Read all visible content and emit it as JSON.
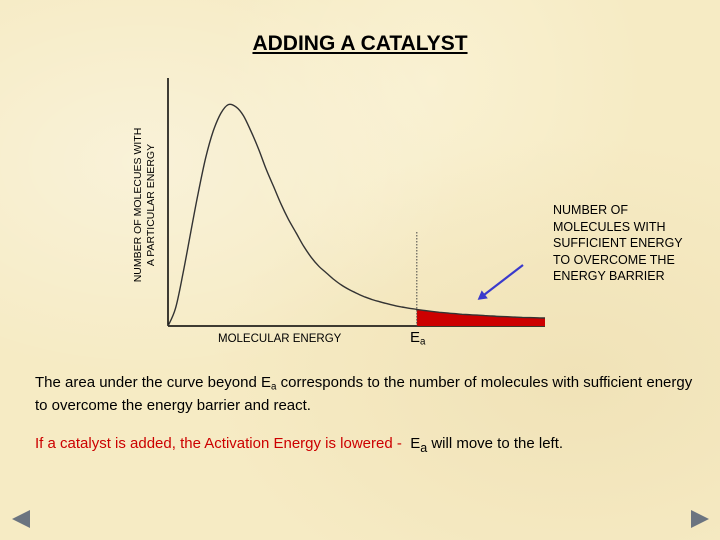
{
  "title": "ADDING A CATALYST",
  "chart_data": {
    "type": "area",
    "title": "ADDING A CATALYST",
    "ylabel_line1": "NUMBER OF MOLECUES WITH",
    "ylabel_line2": "A PARTICULAR ENERGY",
    "xlabel": "MOLECULAR ENERGY",
    "ea_label_main": "E",
    "ea_label_sub": "a",
    "annotation": "NUMBER OF MOLECULES WITH SUFFICIENT ENERGY TO OVERCOME THE ENERGY BARRIER",
    "curve": {
      "description_free": true,
      "x": [
        0,
        2,
        4,
        6,
        8,
        10,
        12,
        14,
        16,
        18,
        20,
        22,
        24,
        26,
        28,
        30,
        32,
        34,
        36,
        38,
        40,
        42,
        44,
        46,
        48,
        50,
        52,
        54,
        56,
        58,
        60,
        62,
        64,
        66,
        68,
        70,
        72,
        74,
        76,
        78,
        80,
        82,
        84,
        86,
        88,
        90,
        92,
        94,
        96,
        98,
        100
      ],
      "y": [
        0,
        8,
        24,
        42,
        60,
        76,
        88,
        96,
        100,
        99,
        95,
        88,
        80,
        71,
        63,
        55,
        48,
        42,
        36,
        31,
        27,
        24,
        21,
        18.5,
        16.5,
        14.8,
        13.3,
        12,
        11,
        10.1,
        9.3,
        8.6,
        8,
        7.5,
        7,
        6.6,
        6.2,
        5.9,
        5.6,
        5.3,
        5.1,
        4.9,
        4.7,
        4.5,
        4.3,
        4.2,
        4.0,
        3.9,
        3.8,
        3.7,
        3.6
      ]
    },
    "ea_x": 66,
    "ylim": [
      0,
      112
    ],
    "xlim": [
      0,
      100
    ],
    "curve_color": "#333333",
    "shade_color": "#cc0000",
    "arrow_color": "#3a3acc",
    "grid": false
  },
  "paragraph1": {
    "part1": "The area under the curve beyond E",
    "sub": "a",
    "part2": " corresponds to the number of molecules with sufficient energy to overcome the energy barrier and react."
  },
  "paragraph2": {
    "red": "If a catalyst is added, the Activation Energy is lowered -",
    "part1": "  E",
    "sub": "a",
    "part2": " will move to the left."
  },
  "nav": {
    "prev_icon": "triangle-left-icon",
    "next_icon": "triangle-right-icon",
    "color": "#6b7480"
  }
}
